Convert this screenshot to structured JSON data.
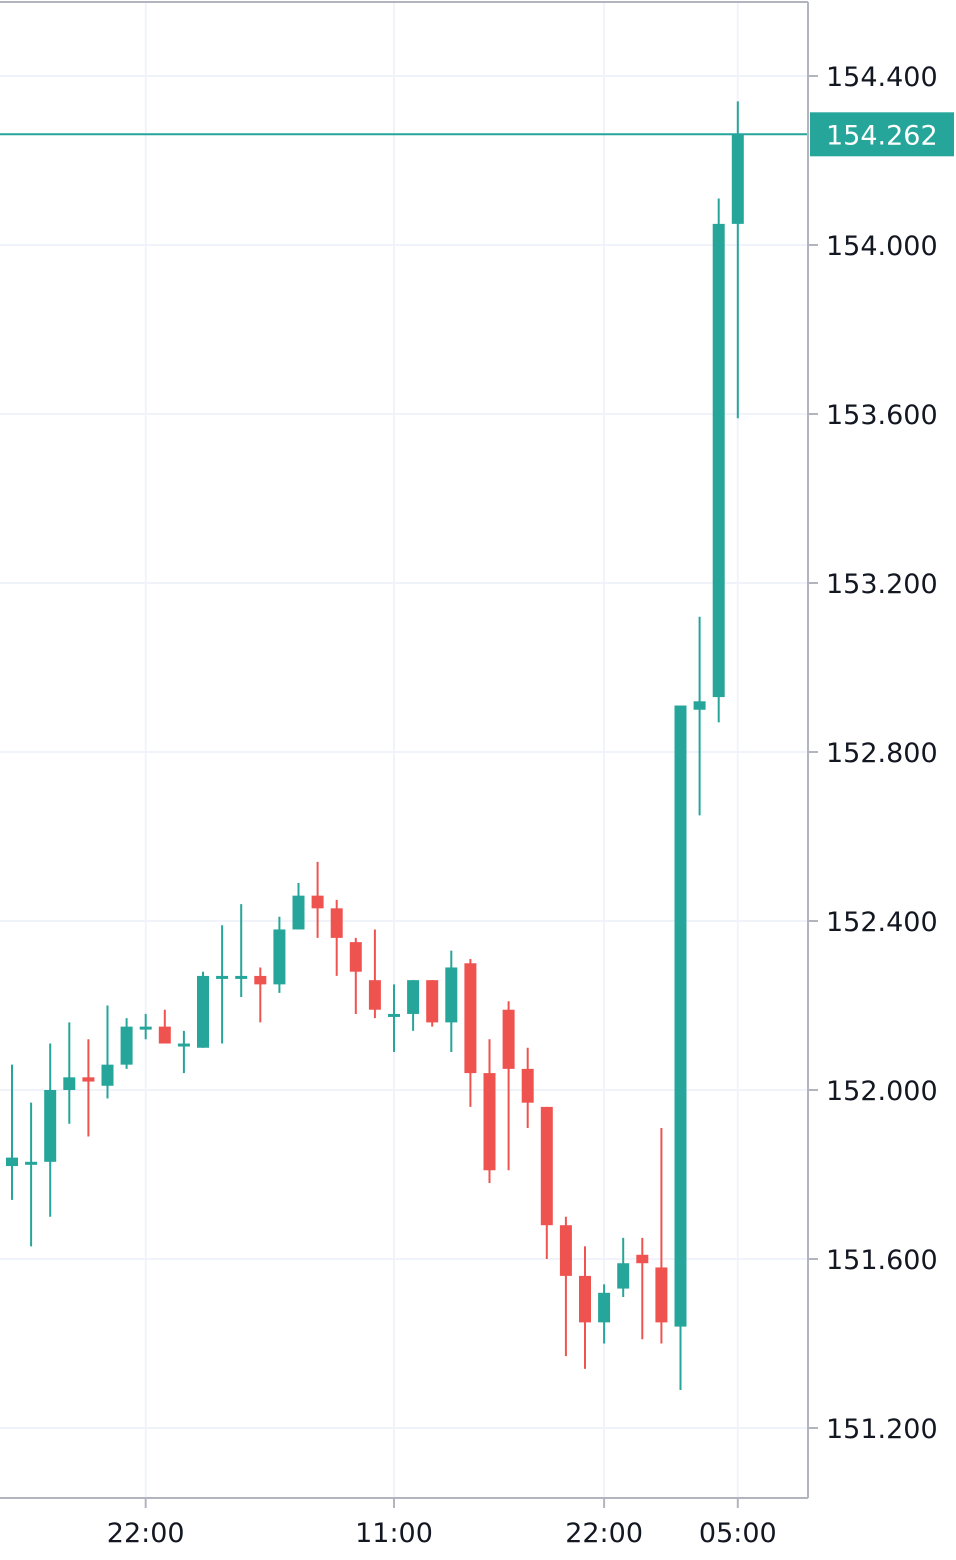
{
  "colors": {
    "up": "#26a69a",
    "down": "#ef5350",
    "grid": "#f0f3fa",
    "axis": "#b2b5be",
    "text": "#131722",
    "background": "#ffffff"
  },
  "chart_data": {
    "type": "candlestick",
    "y_range": [
      151.0,
      154.58
    ],
    "y_ticks": [
      "151.200",
      "151.600",
      "152.000",
      "152.400",
      "152.800",
      "153.200",
      "153.600",
      "154.000",
      "154.400"
    ],
    "x_ticks": [
      {
        "label": "22:00",
        "candle_index": 7
      },
      {
        "label": "11:00",
        "candle_index": 20
      },
      {
        "label": "22:00",
        "candle_index": 31
      },
      {
        "label": "05:00",
        "candle_index": 38
      }
    ],
    "current_price": 154.262,
    "current_price_label": "154.262",
    "candles": [
      {
        "o": 151.82,
        "h": 152.06,
        "l": 151.74,
        "c": 151.84
      },
      {
        "o": 151.83,
        "h": 151.97,
        "l": 151.63,
        "c": 151.83
      },
      {
        "o": 151.83,
        "h": 152.11,
        "l": 151.7,
        "c": 152.0
      },
      {
        "o": 152.0,
        "h": 152.16,
        "l": 151.92,
        "c": 152.03
      },
      {
        "o": 152.03,
        "h": 152.12,
        "l": 151.89,
        "c": 152.02
      },
      {
        "o": 152.01,
        "h": 152.2,
        "l": 151.98,
        "c": 152.06
      },
      {
        "o": 152.06,
        "h": 152.17,
        "l": 152.05,
        "c": 152.15
      },
      {
        "o": 152.15,
        "h": 152.18,
        "l": 152.12,
        "c": 152.15
      },
      {
        "o": 152.15,
        "h": 152.19,
        "l": 152.11,
        "c": 152.11
      },
      {
        "o": 152.11,
        "h": 152.14,
        "l": 152.04,
        "c": 152.11
      },
      {
        "o": 152.1,
        "h": 152.28,
        "l": 152.1,
        "c": 152.27
      },
      {
        "o": 152.27,
        "h": 152.39,
        "l": 152.11,
        "c": 152.27
      },
      {
        "o": 152.27,
        "h": 152.44,
        "l": 152.22,
        "c": 152.27
      },
      {
        "o": 152.27,
        "h": 152.29,
        "l": 152.16,
        "c": 152.25
      },
      {
        "o": 152.25,
        "h": 152.41,
        "l": 152.23,
        "c": 152.38
      },
      {
        "o": 152.38,
        "h": 152.49,
        "l": 152.38,
        "c": 152.46
      },
      {
        "o": 152.46,
        "h": 152.54,
        "l": 152.36,
        "c": 152.43
      },
      {
        "o": 152.43,
        "h": 152.45,
        "l": 152.27,
        "c": 152.36
      },
      {
        "o": 152.35,
        "h": 152.36,
        "l": 152.18,
        "c": 152.28
      },
      {
        "o": 152.26,
        "h": 152.38,
        "l": 152.17,
        "c": 152.19
      },
      {
        "o": 152.18,
        "h": 152.25,
        "l": 152.09,
        "c": 152.18
      },
      {
        "o": 152.18,
        "h": 152.26,
        "l": 152.14,
        "c": 152.26
      },
      {
        "o": 152.26,
        "h": 152.26,
        "l": 152.15,
        "c": 152.16
      },
      {
        "o": 152.16,
        "h": 152.33,
        "l": 152.09,
        "c": 152.29
      },
      {
        "o": 152.3,
        "h": 152.31,
        "l": 151.96,
        "c": 152.04
      },
      {
        "o": 152.04,
        "h": 152.12,
        "l": 151.78,
        "c": 151.81
      },
      {
        "o": 152.19,
        "h": 152.21,
        "l": 151.81,
        "c": 152.05
      },
      {
        "o": 152.05,
        "h": 152.1,
        "l": 151.91,
        "c": 151.97
      },
      {
        "o": 151.96,
        "h": 151.96,
        "l": 151.6,
        "c": 151.68
      },
      {
        "o": 151.68,
        "h": 151.7,
        "l": 151.37,
        "c": 151.56
      },
      {
        "o": 151.56,
        "h": 151.63,
        "l": 151.34,
        "c": 151.45
      },
      {
        "o": 151.45,
        "h": 151.54,
        "l": 151.4,
        "c": 151.52
      },
      {
        "o": 151.53,
        "h": 151.65,
        "l": 151.51,
        "c": 151.59
      },
      {
        "o": 151.61,
        "h": 151.65,
        "l": 151.41,
        "c": 151.59
      },
      {
        "o": 151.58,
        "h": 151.91,
        "l": 151.4,
        "c": 151.45
      },
      {
        "o": 151.44,
        "h": 152.91,
        "l": 151.29,
        "c": 152.91
      },
      {
        "o": 152.9,
        "h": 153.12,
        "l": 152.65,
        "c": 152.92
      },
      {
        "o": 152.93,
        "h": 154.11,
        "l": 152.87,
        "c": 154.05
      },
      {
        "o": 154.05,
        "h": 154.34,
        "l": 153.59,
        "c": 154.262
      }
    ]
  }
}
